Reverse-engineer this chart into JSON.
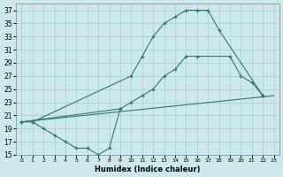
{
  "xlabel": "Humidex (Indice chaleur)",
  "bg_color": "#cce8ec",
  "grid_color": "#aacdd4",
  "line_color": "#2e7b6e",
  "ylim": [
    15,
    38
  ],
  "xlim": [
    -0.5,
    23.5
  ],
  "yticks": [
    15,
    17,
    19,
    21,
    23,
    25,
    27,
    29,
    31,
    33,
    35,
    37
  ],
  "xticks": [
    0,
    1,
    2,
    3,
    4,
    5,
    6,
    7,
    8,
    9,
    10,
    11,
    12,
    13,
    14,
    15,
    16,
    17,
    18,
    19,
    20,
    21,
    22,
    23
  ],
  "curve1_x": [
    0,
    1,
    10,
    11,
    12,
    13,
    14,
    15,
    16,
    17,
    18,
    22
  ],
  "curve1_y": [
    20,
    20,
    27,
    30,
    33,
    35,
    36,
    37,
    37,
    37,
    34,
    24
  ],
  "curve2_x": [
    0,
    9,
    10,
    11,
    12,
    13,
    14,
    15,
    16,
    19,
    20,
    21,
    22
  ],
  "curve2_y": [
    20,
    22,
    23,
    24,
    25,
    27,
    28,
    30,
    30,
    30,
    27,
    26,
    24
  ],
  "curve3_x": [
    0,
    23
  ],
  "curve3_y": [
    20,
    24
  ],
  "curve4_x": [
    1,
    2,
    3,
    4,
    5,
    6,
    7,
    8,
    9
  ],
  "curve4_y": [
    20,
    19,
    18,
    17,
    16,
    16,
    15,
    16,
    22
  ]
}
